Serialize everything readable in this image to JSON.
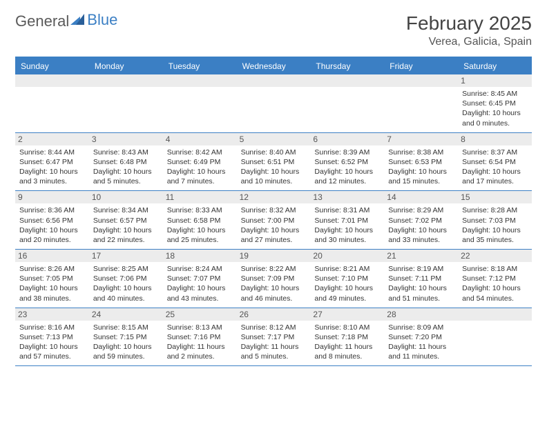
{
  "brand": {
    "part1": "General",
    "part2": "Blue"
  },
  "title": "February 2025",
  "location": "Verea, Galicia, Spain",
  "colors": {
    "accent": "#3b7fc4",
    "header_text": "#ffffff",
    "daynum_bg": "#ececec",
    "text": "#333333",
    "border": "#3b7fc4"
  },
  "dayNames": [
    "Sunday",
    "Monday",
    "Tuesday",
    "Wednesday",
    "Thursday",
    "Friday",
    "Saturday"
  ],
  "weeks": [
    [
      {
        "n": "",
        "sr": "",
        "ss": "",
        "dl": ""
      },
      {
        "n": "",
        "sr": "",
        "ss": "",
        "dl": ""
      },
      {
        "n": "",
        "sr": "",
        "ss": "",
        "dl": ""
      },
      {
        "n": "",
        "sr": "",
        "ss": "",
        "dl": ""
      },
      {
        "n": "",
        "sr": "",
        "ss": "",
        "dl": ""
      },
      {
        "n": "",
        "sr": "",
        "ss": "",
        "dl": ""
      },
      {
        "n": "1",
        "sr": "Sunrise: 8:45 AM",
        "ss": "Sunset: 6:45 PM",
        "dl": "Daylight: 10 hours and 0 minutes."
      }
    ],
    [
      {
        "n": "2",
        "sr": "Sunrise: 8:44 AM",
        "ss": "Sunset: 6:47 PM",
        "dl": "Daylight: 10 hours and 3 minutes."
      },
      {
        "n": "3",
        "sr": "Sunrise: 8:43 AM",
        "ss": "Sunset: 6:48 PM",
        "dl": "Daylight: 10 hours and 5 minutes."
      },
      {
        "n": "4",
        "sr": "Sunrise: 8:42 AM",
        "ss": "Sunset: 6:49 PM",
        "dl": "Daylight: 10 hours and 7 minutes."
      },
      {
        "n": "5",
        "sr": "Sunrise: 8:40 AM",
        "ss": "Sunset: 6:51 PM",
        "dl": "Daylight: 10 hours and 10 minutes."
      },
      {
        "n": "6",
        "sr": "Sunrise: 8:39 AM",
        "ss": "Sunset: 6:52 PM",
        "dl": "Daylight: 10 hours and 12 minutes."
      },
      {
        "n": "7",
        "sr": "Sunrise: 8:38 AM",
        "ss": "Sunset: 6:53 PM",
        "dl": "Daylight: 10 hours and 15 minutes."
      },
      {
        "n": "8",
        "sr": "Sunrise: 8:37 AM",
        "ss": "Sunset: 6:54 PM",
        "dl": "Daylight: 10 hours and 17 minutes."
      }
    ],
    [
      {
        "n": "9",
        "sr": "Sunrise: 8:36 AM",
        "ss": "Sunset: 6:56 PM",
        "dl": "Daylight: 10 hours and 20 minutes."
      },
      {
        "n": "10",
        "sr": "Sunrise: 8:34 AM",
        "ss": "Sunset: 6:57 PM",
        "dl": "Daylight: 10 hours and 22 minutes."
      },
      {
        "n": "11",
        "sr": "Sunrise: 8:33 AM",
        "ss": "Sunset: 6:58 PM",
        "dl": "Daylight: 10 hours and 25 minutes."
      },
      {
        "n": "12",
        "sr": "Sunrise: 8:32 AM",
        "ss": "Sunset: 7:00 PM",
        "dl": "Daylight: 10 hours and 27 minutes."
      },
      {
        "n": "13",
        "sr": "Sunrise: 8:31 AM",
        "ss": "Sunset: 7:01 PM",
        "dl": "Daylight: 10 hours and 30 minutes."
      },
      {
        "n": "14",
        "sr": "Sunrise: 8:29 AM",
        "ss": "Sunset: 7:02 PM",
        "dl": "Daylight: 10 hours and 33 minutes."
      },
      {
        "n": "15",
        "sr": "Sunrise: 8:28 AM",
        "ss": "Sunset: 7:03 PM",
        "dl": "Daylight: 10 hours and 35 minutes."
      }
    ],
    [
      {
        "n": "16",
        "sr": "Sunrise: 8:26 AM",
        "ss": "Sunset: 7:05 PM",
        "dl": "Daylight: 10 hours and 38 minutes."
      },
      {
        "n": "17",
        "sr": "Sunrise: 8:25 AM",
        "ss": "Sunset: 7:06 PM",
        "dl": "Daylight: 10 hours and 40 minutes."
      },
      {
        "n": "18",
        "sr": "Sunrise: 8:24 AM",
        "ss": "Sunset: 7:07 PM",
        "dl": "Daylight: 10 hours and 43 minutes."
      },
      {
        "n": "19",
        "sr": "Sunrise: 8:22 AM",
        "ss": "Sunset: 7:09 PM",
        "dl": "Daylight: 10 hours and 46 minutes."
      },
      {
        "n": "20",
        "sr": "Sunrise: 8:21 AM",
        "ss": "Sunset: 7:10 PM",
        "dl": "Daylight: 10 hours and 49 minutes."
      },
      {
        "n": "21",
        "sr": "Sunrise: 8:19 AM",
        "ss": "Sunset: 7:11 PM",
        "dl": "Daylight: 10 hours and 51 minutes."
      },
      {
        "n": "22",
        "sr": "Sunrise: 8:18 AM",
        "ss": "Sunset: 7:12 PM",
        "dl": "Daylight: 10 hours and 54 minutes."
      }
    ],
    [
      {
        "n": "23",
        "sr": "Sunrise: 8:16 AM",
        "ss": "Sunset: 7:13 PM",
        "dl": "Daylight: 10 hours and 57 minutes."
      },
      {
        "n": "24",
        "sr": "Sunrise: 8:15 AM",
        "ss": "Sunset: 7:15 PM",
        "dl": "Daylight: 10 hours and 59 minutes."
      },
      {
        "n": "25",
        "sr": "Sunrise: 8:13 AM",
        "ss": "Sunset: 7:16 PM",
        "dl": "Daylight: 11 hours and 2 minutes."
      },
      {
        "n": "26",
        "sr": "Sunrise: 8:12 AM",
        "ss": "Sunset: 7:17 PM",
        "dl": "Daylight: 11 hours and 5 minutes."
      },
      {
        "n": "27",
        "sr": "Sunrise: 8:10 AM",
        "ss": "Sunset: 7:18 PM",
        "dl": "Daylight: 11 hours and 8 minutes."
      },
      {
        "n": "28",
        "sr": "Sunrise: 8:09 AM",
        "ss": "Sunset: 7:20 PM",
        "dl": "Daylight: 11 hours and 11 minutes."
      },
      {
        "n": "",
        "sr": "",
        "ss": "",
        "dl": ""
      }
    ]
  ]
}
